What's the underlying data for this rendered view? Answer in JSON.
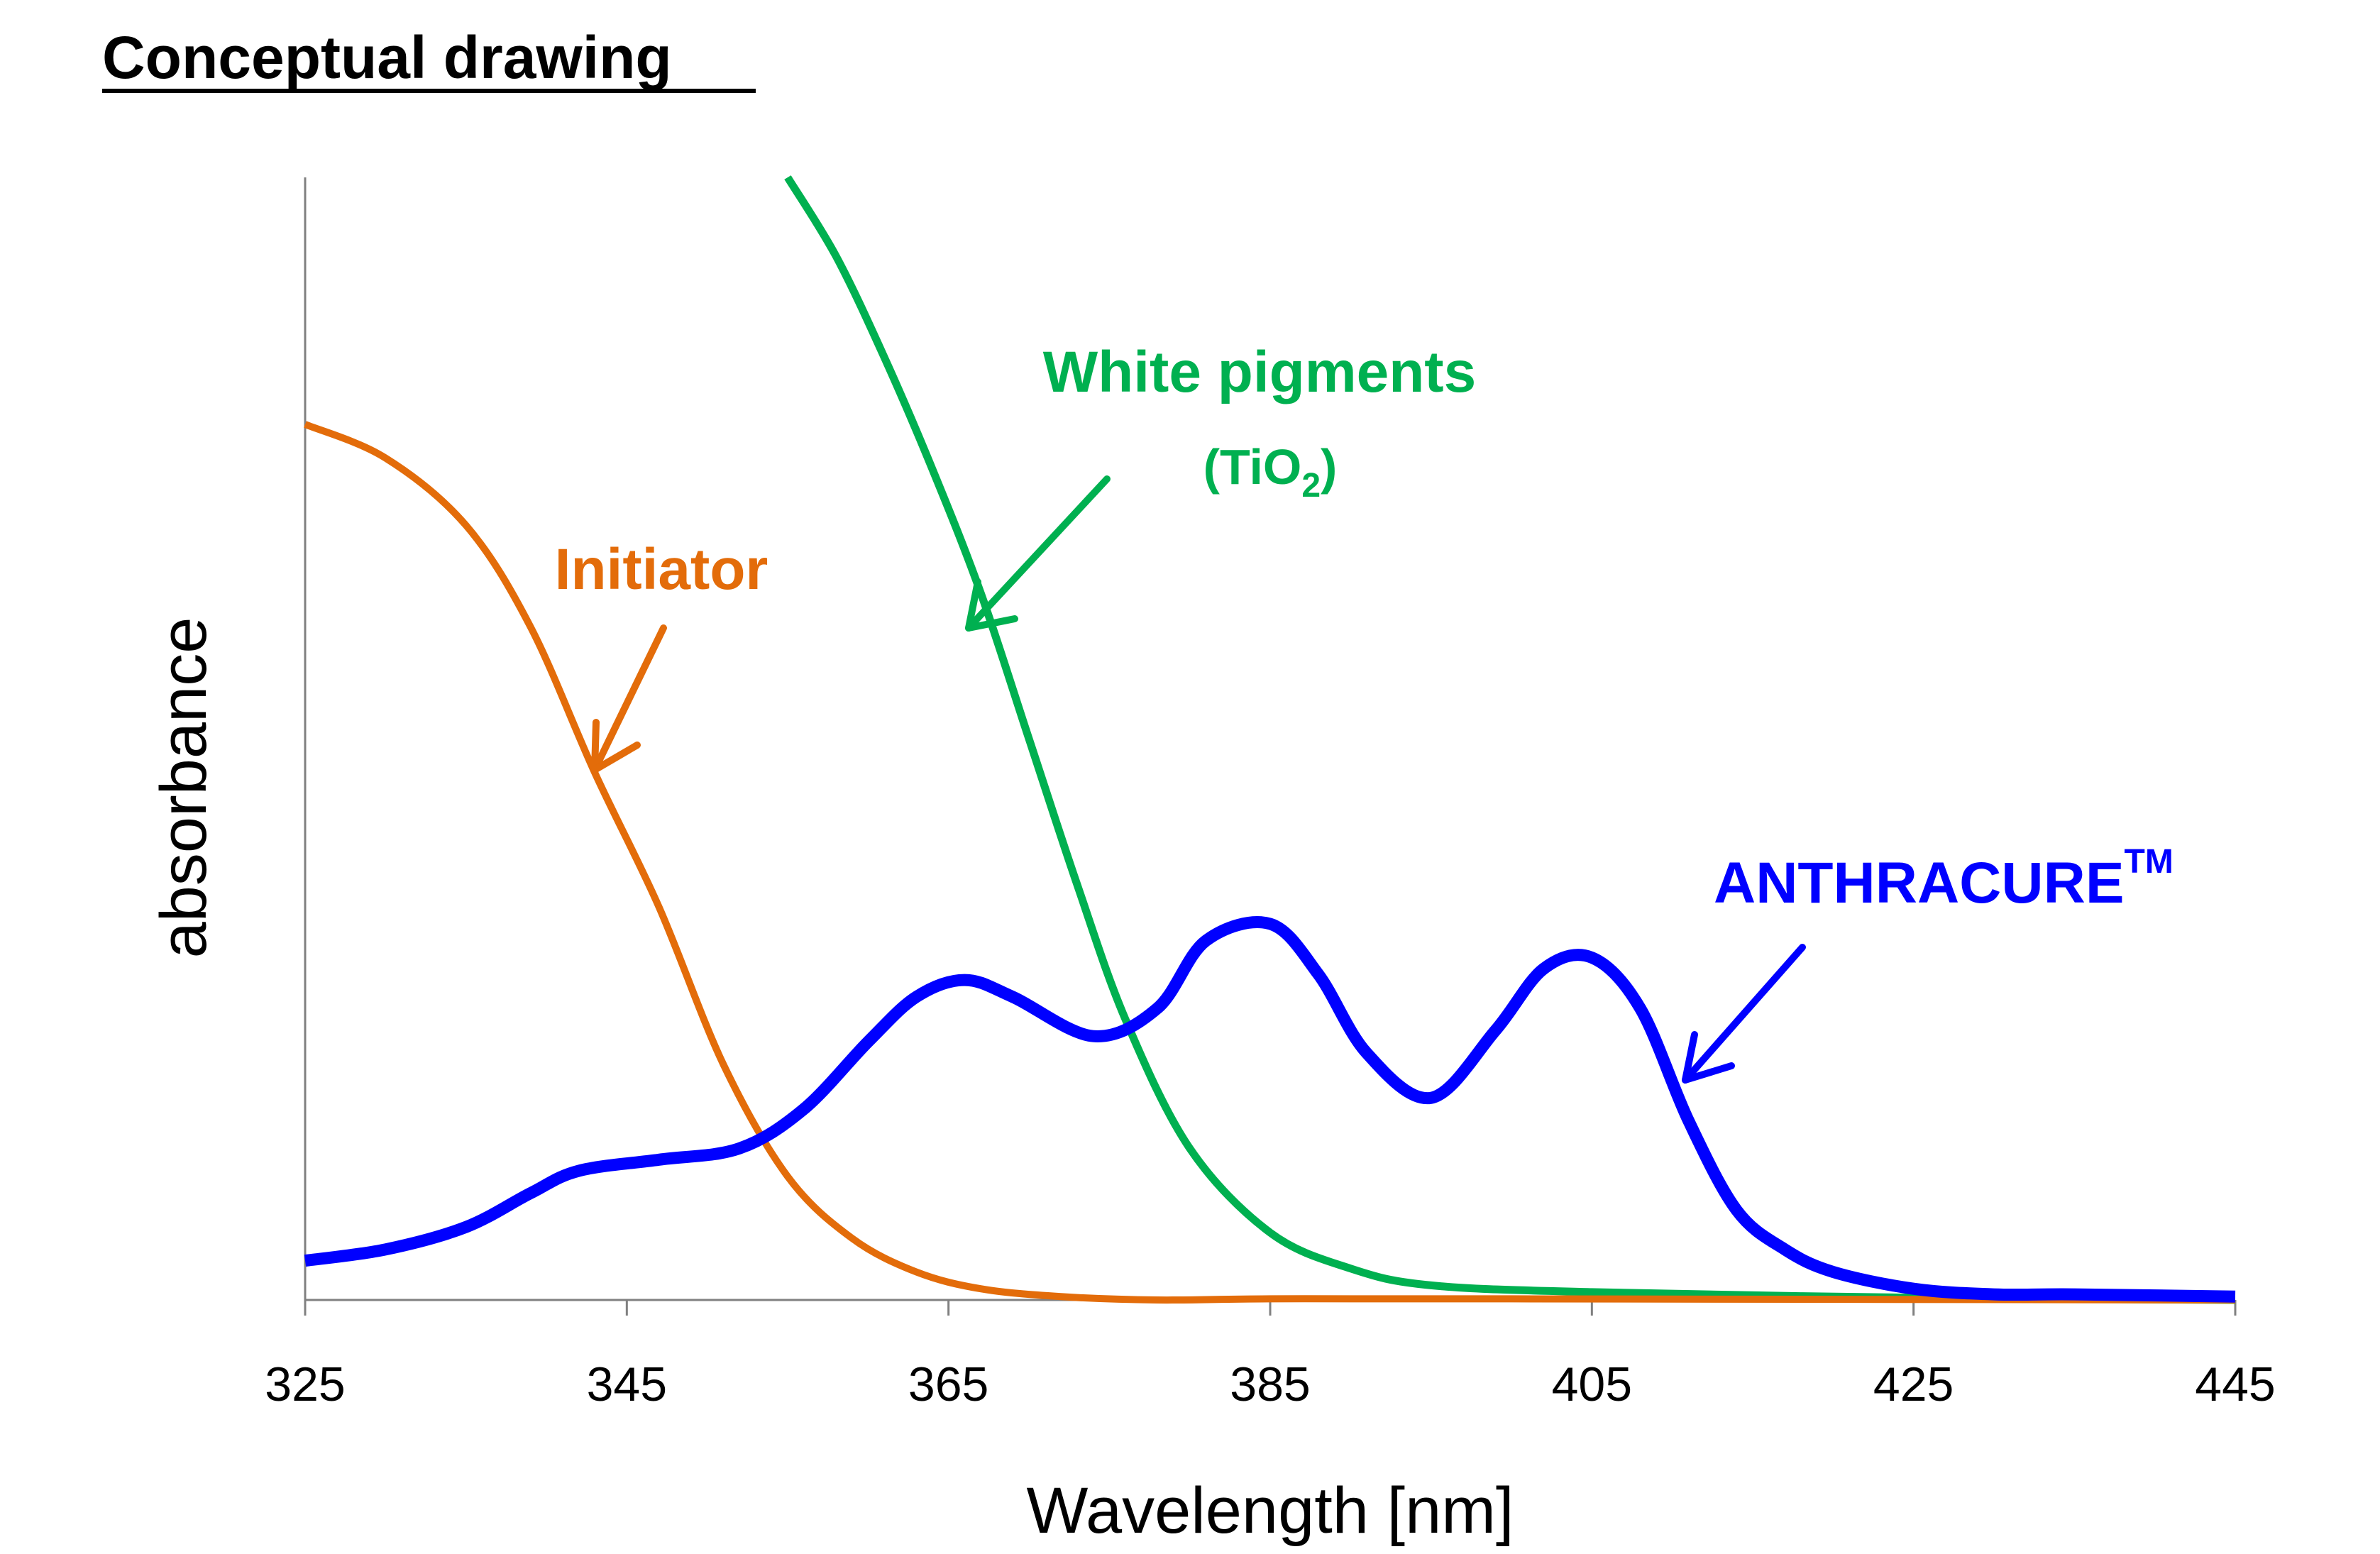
{
  "chart_data": {
    "type": "line",
    "title": "Conceptual drawing",
    "xlabel": "Wavelength [nm]",
    "ylabel": "absorbance",
    "xlim": [
      325,
      445
    ],
    "ylim": [
      0,
      100
    ],
    "xticks": [
      "325",
      "345",
      "365",
      "385",
      "405",
      "425",
      "445"
    ],
    "grid": false,
    "series": [
      {
        "name": "Initiator",
        "color": "#E36C0A",
        "x": [
          325,
          330,
          335,
          339,
          343,
          347,
          351,
          355,
          359,
          363,
          367,
          372,
          378,
          385,
          400,
          445
        ],
        "y": [
          78,
          75,
          69,
          60,
          47,
          35,
          21,
          11,
          5.5,
          2.5,
          1,
          0.3,
          0,
          0.1,
          0.1,
          0
        ]
      },
      {
        "name": "White pigments",
        "color": "#00B050",
        "x": [
          355,
          358,
          361,
          364,
          367,
          370,
          373,
          376,
          380,
          385,
          390,
          395,
          405,
          425,
          445
        ],
        "y": [
          100,
          93,
          84,
          74,
          63,
          50,
          37,
          25,
          13.5,
          6,
          2.8,
          1.3,
          0.7,
          0.2,
          0
        ]
      },
      {
        "name": "ANTHRACURE",
        "color": "#0000FF",
        "x": [
          325,
          330,
          335,
          339,
          342,
          347,
          352,
          356,
          360,
          363,
          366,
          369,
          374,
          378,
          381,
          385,
          388,
          391,
          395,
          399,
          402,
          405,
          408,
          411,
          414,
          417,
          420,
          425,
          430,
          435,
          445
        ],
        "y": [
          3.5,
          4.5,
          6.5,
          9.5,
          11.5,
          12.5,
          13.5,
          17,
          23,
          27,
          28.5,
          27,
          23.5,
          26,
          32,
          33.5,
          29,
          22,
          18,
          24,
          29.5,
          30.5,
          26,
          16,
          8,
          4.5,
          2.5,
          1,
          0.5,
          0.5,
          0.3
        ]
      }
    ],
    "annotations": {
      "initiator": "Initiator",
      "white_pigments": "White pigments",
      "tio2_open": "(TiO",
      "tio2_sub": "2",
      "tio2_close": ")",
      "anthracure": "ANTHRACURE",
      "anthracure_tm": "TM"
    }
  }
}
